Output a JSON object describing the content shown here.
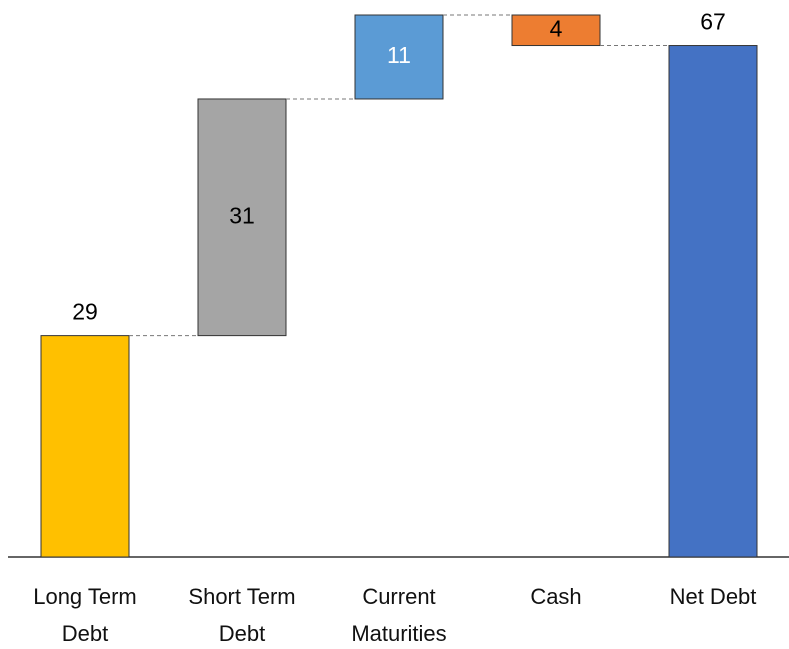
{
  "chart_data": {
    "type": "waterfall",
    "categories": [
      "Long Term Debt",
      "Short Term Debt",
      "Current Maturities",
      "Cash",
      "Net Debt"
    ],
    "values": [
      29,
      31,
      11,
      -4,
      67
    ],
    "value_labels": [
      "29",
      "31",
      "11",
      "4",
      "67"
    ],
    "is_total": [
      false,
      false,
      false,
      false,
      true
    ],
    "colors": [
      "#FFC000",
      "#A5A5A5",
      "#5B9BD5",
      "#ED7D31",
      "#4472C4"
    ],
    "label_colors": [
      "#000000",
      "#000000",
      "#ffffff",
      "#000000",
      "#000000"
    ]
  }
}
